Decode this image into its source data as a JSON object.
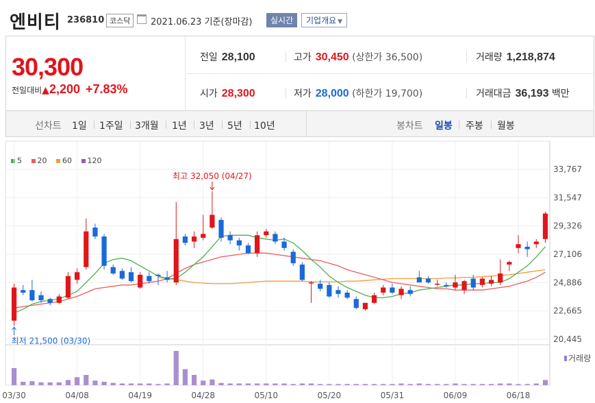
{
  "header": {
    "stock_name": "엔비티",
    "stock_code": "236810",
    "market": "코스닥",
    "date_text": "2021.06.23 기준(장마감)",
    "realtime_label": "실시간",
    "company_label": "기업개요"
  },
  "summary": {
    "price": "30,300",
    "change_label": "전일대비",
    "change_arrow": "▲",
    "change_amount": "2,200",
    "change_pct": "+7.83%",
    "prev_close": {
      "label": "전일",
      "value": "28,100"
    },
    "open": {
      "label": "시가",
      "value": "28,300"
    },
    "high": {
      "label": "고가",
      "value": "30,450",
      "sub": "(상한가 36,500)"
    },
    "low": {
      "label": "저가",
      "value": "28,000",
      "sub": "(하한가 19,700)"
    },
    "volume": {
      "label": "거래량",
      "value": "1,218,874"
    },
    "trade_value": {
      "label": "거래대금",
      "value": "36,193",
      "unit": "백만"
    }
  },
  "tabs": {
    "line_label": "선차트",
    "periods": [
      "1일",
      "1주일",
      "3개월",
      "1년",
      "3년",
      "5년",
      "10년"
    ],
    "candle_label": "봉차트",
    "candles": [
      "일봉",
      "주봉",
      "월봉"
    ],
    "active_candle": "일봉"
  },
  "chart_data": {
    "type": "candlestick",
    "legend": [
      {
        "name": "5",
        "color": "#4caf50"
      },
      {
        "name": "20",
        "color": "#f15a5a"
      },
      {
        "name": "60",
        "color": "#f39c3c"
      },
      {
        "name": "120",
        "color": "#9b59b6"
      }
    ],
    "y_ticks": [
      33767,
      31547,
      29326,
      27106,
      24886,
      22665,
      20445
    ],
    "ylim": [
      20445,
      33767
    ],
    "x_ticks": [
      {
        "label": "03/30",
        "index": 0
      },
      {
        "label": "04/08",
        "index": 7
      },
      {
        "label": "04/19",
        "index": 14
      },
      {
        "label": "04/28",
        "index": 21
      },
      {
        "label": "05/10",
        "index": 28
      },
      {
        "label": "05/20",
        "index": 35
      },
      {
        "label": "05/31",
        "index": 42
      },
      {
        "label": "06/09",
        "index": 49
      },
      {
        "label": "06/18",
        "index": 56
      }
    ],
    "max_annotation": "최고 32,050 (04/27)",
    "min_annotation": "최저 21,500 (03/30)",
    "volume_label": "거래량",
    "candles": [
      {
        "o": 21900,
        "h": 24800,
        "l": 21500,
        "c": 24500
      },
      {
        "o": 24300,
        "h": 24700,
        "l": 23900,
        "c": 24100
      },
      {
        "o": 24300,
        "h": 25100,
        "l": 23400,
        "c": 23500
      },
      {
        "o": 23900,
        "h": 24200,
        "l": 23300,
        "c": 23500
      },
      {
        "o": 23600,
        "h": 23700,
        "l": 23100,
        "c": 23300
      },
      {
        "o": 23300,
        "h": 24000,
        "l": 23200,
        "c": 23800
      },
      {
        "o": 23700,
        "h": 25700,
        "l": 23600,
        "c": 25400
      },
      {
        "o": 25100,
        "h": 26000,
        "l": 24800,
        "c": 25700
      },
      {
        "o": 26100,
        "h": 29900,
        "l": 25900,
        "c": 28900
      },
      {
        "o": 29200,
        "h": 29500,
        "l": 28300,
        "c": 28500
      },
      {
        "o": 28500,
        "h": 28700,
        "l": 25900,
        "c": 26200
      },
      {
        "o": 26100,
        "h": 26300,
        "l": 25500,
        "c": 25600
      },
      {
        "o": 25800,
        "h": 26000,
        "l": 25100,
        "c": 25200
      },
      {
        "o": 25700,
        "h": 26100,
        "l": 24900,
        "c": 25000
      },
      {
        "o": 24500,
        "h": 25700,
        "l": 24400,
        "c": 25500
      },
      {
        "o": 25400,
        "h": 25700,
        "l": 24800,
        "c": 25000
      },
      {
        "o": 25500,
        "h": 25600,
        "l": 24700,
        "c": 25400
      },
      {
        "o": 25300,
        "h": 25800,
        "l": 24900,
        "c": 25100
      },
      {
        "o": 24900,
        "h": 31200,
        "l": 24700,
        "c": 28300
      },
      {
        "o": 28500,
        "h": 28700,
        "l": 27800,
        "c": 28000
      },
      {
        "o": 28100,
        "h": 28900,
        "l": 27600,
        "c": 28500
      },
      {
        "o": 28400,
        "h": 30200,
        "l": 28200,
        "c": 28700
      },
      {
        "o": 29200,
        "h": 32050,
        "l": 29100,
        "c": 30200
      },
      {
        "o": 29800,
        "h": 30000,
        "l": 28100,
        "c": 28400
      },
      {
        "o": 28600,
        "h": 28900,
        "l": 27900,
        "c": 28200
      },
      {
        "o": 28200,
        "h": 28400,
        "l": 27400,
        "c": 27800
      },
      {
        "o": 27800,
        "h": 28000,
        "l": 27100,
        "c": 27200
      },
      {
        "o": 27200,
        "h": 28900,
        "l": 26900,
        "c": 28600
      },
      {
        "o": 28600,
        "h": 29100,
        "l": 28400,
        "c": 28900
      },
      {
        "o": 28700,
        "h": 28900,
        "l": 27900,
        "c": 28100
      },
      {
        "o": 28100,
        "h": 28400,
        "l": 27400,
        "c": 27600
      },
      {
        "o": 27300,
        "h": 27500,
        "l": 26200,
        "c": 26400
      },
      {
        "o": 26300,
        "h": 26500,
        "l": 25000,
        "c": 25100
      },
      {
        "o": 24900,
        "h": 25000,
        "l": 23300,
        "c": 24900
      },
      {
        "o": 24800,
        "h": 25100,
        "l": 24200,
        "c": 24400
      },
      {
        "o": 24700,
        "h": 24900,
        "l": 23700,
        "c": 23800
      },
      {
        "o": 24300,
        "h": 24600,
        "l": 23700,
        "c": 24000
      },
      {
        "o": 24100,
        "h": 24300,
        "l": 23600,
        "c": 23700
      },
      {
        "o": 23600,
        "h": 23800,
        "l": 22800,
        "c": 22900
      },
      {
        "o": 22800,
        "h": 23300,
        "l": 22700,
        "c": 23300
      },
      {
        "o": 23300,
        "h": 24100,
        "l": 23200,
        "c": 23900
      },
      {
        "o": 24100,
        "h": 24700,
        "l": 23900,
        "c": 24500
      },
      {
        "o": 24500,
        "h": 24800,
        "l": 24000,
        "c": 24100
      },
      {
        "o": 23900,
        "h": 24600,
        "l": 23600,
        "c": 24400
      },
      {
        "o": 24300,
        "h": 24600,
        "l": 23800,
        "c": 24000
      },
      {
        "o": 25300,
        "h": 25800,
        "l": 24900,
        "c": 24900
      },
      {
        "o": 25200,
        "h": 25400,
        "l": 24800,
        "c": 24900
      },
      {
        "o": 24800,
        "h": 25100,
        "l": 24600,
        "c": 24800
      },
      {
        "o": 24700,
        "h": 24900,
        "l": 24500,
        "c": 24600
      },
      {
        "o": 24500,
        "h": 25500,
        "l": 24300,
        "c": 24900
      },
      {
        "o": 24300,
        "h": 25100,
        "l": 24000,
        "c": 25000
      },
      {
        "o": 25200,
        "h": 25500,
        "l": 24300,
        "c": 24500
      },
      {
        "o": 24700,
        "h": 25300,
        "l": 24500,
        "c": 25200
      },
      {
        "o": 24800,
        "h": 25400,
        "l": 24600,
        "c": 25100
      },
      {
        "o": 24900,
        "h": 26700,
        "l": 24700,
        "c": 25600
      },
      {
        "o": 26300,
        "h": 26600,
        "l": 25800,
        "c": 26500
      },
      {
        "o": 27600,
        "h": 28600,
        "l": 27200,
        "c": 27900
      },
      {
        "o": 27700,
        "h": 28100,
        "l": 26900,
        "c": 27500
      },
      {
        "o": 27900,
        "h": 28300,
        "l": 27600,
        "c": 28100
      },
      {
        "o": 28300,
        "h": 30450,
        "l": 28000,
        "c": 30300
      }
    ],
    "ma5": [
      22500,
      22800,
      23200,
      23400,
      23500,
      23600,
      23900,
      24200,
      24900,
      25600,
      26400,
      26700,
      26800,
      26600,
      26200,
      25800,
      25400,
      25200,
      25200,
      25700,
      26300,
      26900,
      27700,
      28500,
      28600,
      28600,
      28600,
      28400,
      28300,
      28200,
      28300,
      28000,
      27400,
      26700,
      26100,
      25400,
      24900,
      24500,
      24200,
      23900,
      23700,
      23700,
      23800,
      24000,
      24100,
      24300,
      24400,
      24500,
      24600,
      24700,
      24700,
      24800,
      24800,
      24900,
      24900,
      25200,
      25700,
      26200,
      26900,
      27700
    ],
    "ma20": [
      22900,
      23000,
      23100,
      23200,
      23300,
      23400,
      23600,
      23800,
      24100,
      24400,
      24500,
      24600,
      24700,
      24700,
      24800,
      24900,
      25000,
      25200,
      25600,
      26000,
      26300,
      26500,
      26700,
      26900,
      27000,
      27100,
      27200,
      27200,
      27200,
      27100,
      27000,
      26900,
      26800,
      26700,
      26600,
      26400,
      26200,
      25900,
      25700,
      25500,
      25300,
      25100,
      24900,
      24800,
      24700,
      24600,
      24500,
      24400,
      24400,
      24300,
      24300,
      24300,
      24300,
      24400,
      24500,
      24600,
      24800,
      25000,
      25300,
      25700
    ],
    "ma60": [
      null,
      null,
      null,
      null,
      null,
      null,
      null,
      null,
      null,
      null,
      null,
      null,
      null,
      null,
      null,
      null,
      25300,
      25200,
      25100,
      25000,
      24900,
      24850,
      24800,
      24800,
      24800,
      24850,
      24900,
      24950,
      25000,
      25000,
      25000,
      25000,
      25000,
      24950,
      24950,
      24950,
      24950,
      25000,
      25000,
      25050,
      25100,
      25150,
      25200,
      25200,
      25200,
      25200,
      25200,
      25200,
      25250,
      25250,
      25300,
      25300,
      25350,
      25400,
      25450,
      25500,
      25600,
      25700,
      25800,
      25900
    ],
    "volume": [
      30,
      6,
      7,
      5,
      5,
      5,
      9,
      14,
      18,
      8,
      6,
      4,
      3,
      3,
      3,
      3,
      2,
      3,
      60,
      28,
      18,
      8,
      10,
      4,
      3,
      3,
      3,
      3,
      3,
      3,
      3,
      2,
      3,
      3,
      2,
      2,
      2,
      2,
      2,
      2,
      2,
      2,
      2,
      3,
      2,
      3,
      2,
      2,
      2,
      3,
      2,
      2,
      2,
      2,
      3,
      3,
      2,
      2,
      3,
      9
    ]
  }
}
